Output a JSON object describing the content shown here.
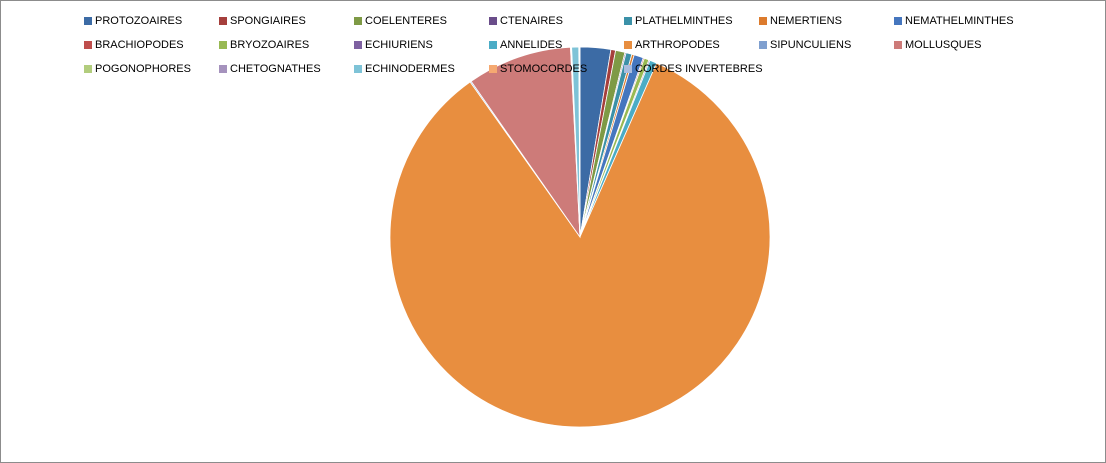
{
  "chart_data": {
    "type": "pie",
    "title": "",
    "legend_position": "top",
    "series": [
      {
        "name": "PROTOZOAIRES",
        "value": 2.6,
        "color": "#3C6BA5"
      },
      {
        "name": "SPONGIAIRES",
        "value": 0.4,
        "color": "#A53F3C"
      },
      {
        "name": "COELENTERES",
        "value": 0.8,
        "color": "#7E9A45"
      },
      {
        "name": "CTENAIRES",
        "value": 0.1,
        "color": "#6A4D8A"
      },
      {
        "name": "PLATHELMINTHES",
        "value": 0.5,
        "color": "#3B91A8"
      },
      {
        "name": "NEMERTIENS",
        "value": 0.2,
        "color": "#DC7B2D"
      },
      {
        "name": "NEMATHELMINTHES",
        "value": 0.8,
        "color": "#4576BE"
      },
      {
        "name": "BRACHIOPODES",
        "value": 0.1,
        "color": "#BF4E4C"
      },
      {
        "name": "BRYOZOAIRES",
        "value": 0.4,
        "color": "#98B953"
      },
      {
        "name": "ECHIURIENS",
        "value": 0.1,
        "color": "#7E61A1"
      },
      {
        "name": "ANNELIDES",
        "value": 0.6,
        "color": "#4BACC6"
      },
      {
        "name": "ARTHROPODES",
        "value": 83.5,
        "color": "#E88E3F"
      },
      {
        "name": "SIPUNCULIENS",
        "value": 0.1,
        "color": "#7F9FCF"
      },
      {
        "name": "MOLLUSQUES",
        "value": 8.9,
        "color": "#CD7B79"
      },
      {
        "name": "POGONOPHORES",
        "value": 0.05,
        "color": "#B2CD7D"
      },
      {
        "name": "CHETOGNATHES",
        "value": 0.05,
        "color": "#A592BD"
      },
      {
        "name": "ECHINODERMES",
        "value": 0.6,
        "color": "#7EC3D7"
      },
      {
        "name": "STOMOCORDES",
        "value": 0.05,
        "color": "#F5A971"
      },
      {
        "name": "CORDES INVERTEBRES",
        "value": 0.05,
        "color": "#A9BCDE"
      }
    ]
  }
}
